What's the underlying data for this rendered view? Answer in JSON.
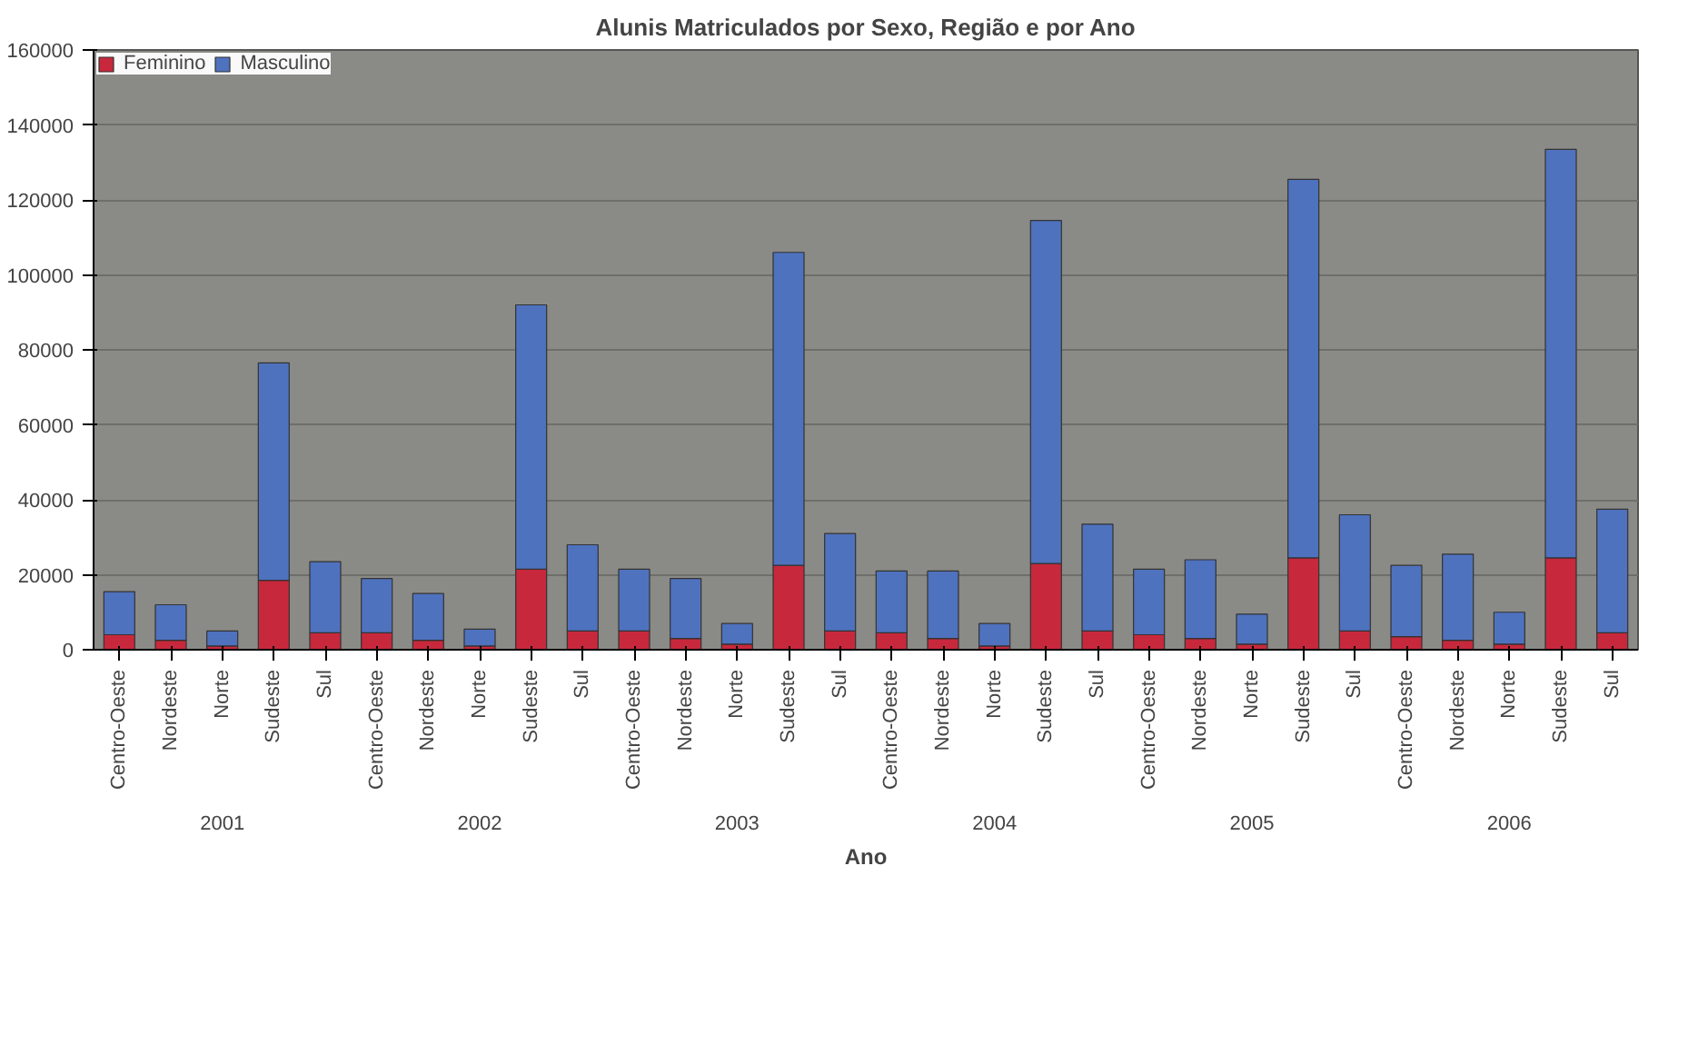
{
  "chart_data": {
    "type": "bar",
    "title": "Alunis Matriculados por Sexo, Região e por Ano",
    "xlabel": "Ano",
    "categories": [
      "Centro-Oeste",
      "Nordeste",
      "Norte",
      "Sudeste",
      "Sul",
      "Centro-Oeste",
      "Nordeste",
      "Norte",
      "Sudeste",
      "Sul",
      "Centro-Oeste",
      "Nordeste",
      "Norte",
      "Sudeste",
      "Sul",
      "Centro-Oeste",
      "Nordeste",
      "Norte",
      "Sudeste",
      "Sul",
      "Centro-Oeste",
      "Nordeste",
      "Norte",
      "Sudeste",
      "Sul",
      "Centro-Oeste",
      "Nordeste",
      "Norte",
      "Sudeste",
      "Sul"
    ],
    "annotations": [
      "2001",
      "2002",
      "2003",
      "2004",
      "2005",
      "2006"
    ],
    "stacked": true,
    "series": [
      {
        "name": "Feminino",
        "color": "#c8283c",
        "values": [
          4000,
          2500,
          1000,
          18500,
          4500,
          4500,
          2500,
          1000,
          21500,
          5000,
          5000,
          3000,
          1500,
          22500,
          5000,
          4500,
          3000,
          1000,
          23000,
          5000,
          4000,
          3000,
          1500,
          24500,
          5000,
          3500,
          2500,
          1500,
          24500,
          4500
        ]
      },
      {
        "name": "Masculino",
        "color": "#4f72be",
        "values": [
          11500,
          9500,
          4000,
          58000,
          19000,
          14500,
          12500,
          4500,
          70500,
          23000,
          16500,
          16000,
          5500,
          83500,
          26000,
          16500,
          18000,
          6000,
          91500,
          28500,
          17500,
          21000,
          8000,
          101000,
          31000,
          19000,
          23000,
          8500,
          109000,
          33000
        ]
      }
    ],
    "ylim": [
      0,
      160000
    ],
    "yticks": [
      0,
      20000,
      40000,
      60000,
      80000,
      100000,
      120000,
      140000,
      160000
    ],
    "grid": "y",
    "legend": "top left"
  }
}
